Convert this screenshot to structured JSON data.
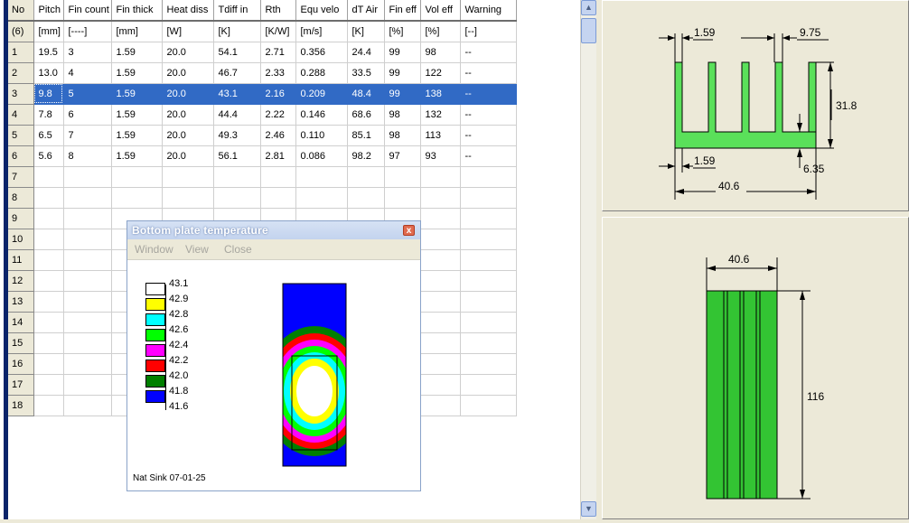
{
  "grid": {
    "headers": [
      "No",
      "Pitch",
      "Fin count",
      "Fin thick",
      "Heat diss",
      "Tdiff in",
      "Rth",
      "Equ velo",
      "dT Air",
      "Fin eff",
      "Vol eff",
      "Warning"
    ],
    "units": [
      "(6)",
      "[mm]",
      "[----]",
      "[mm]",
      "[W]",
      "[K]",
      "[K/W]",
      "[m/s]",
      "[K]",
      "[%]",
      "[%]",
      "[--]"
    ],
    "rows": [
      [
        "1",
        "19.5",
        "3",
        "1.59",
        "20.0",
        "54.1",
        "2.71",
        "0.356",
        "24.4",
        "99",
        "98",
        "--"
      ],
      [
        "2",
        "13.0",
        "4",
        "1.59",
        "20.0",
        "46.7",
        "2.33",
        "0.288",
        "33.5",
        "99",
        "122",
        "--"
      ],
      [
        "3",
        "9.8",
        "5",
        "1.59",
        "20.0",
        "43.1",
        "2.16",
        "0.209",
        "48.4",
        "99",
        "138",
        "--"
      ],
      [
        "4",
        "7.8",
        "6",
        "1.59",
        "20.0",
        "44.4",
        "2.22",
        "0.146",
        "68.6",
        "98",
        "132",
        "--"
      ],
      [
        "5",
        "6.5",
        "7",
        "1.59",
        "20.0",
        "49.3",
        "2.46",
        "0.110",
        "85.1",
        "98",
        "113",
        "--"
      ],
      [
        "6",
        "5.6",
        "8",
        "1.59",
        "20.0",
        "56.1",
        "2.81",
        "0.086",
        "98.2",
        "97",
        "93",
        "--"
      ]
    ],
    "empty_rows": [
      "7",
      "8",
      "9",
      "10",
      "11",
      "12",
      "13",
      "14",
      "15",
      "16",
      "17",
      "18"
    ],
    "selected_row": 2
  },
  "scrollbar": {
    "up_icon": "arrow-up-icon",
    "down_icon": "arrow-down-icon"
  },
  "top_drawing": {
    "fin_thick": "1.59",
    "pitch": "9.75",
    "height": "31.8",
    "base_thick_label": "1.59",
    "base_height": "6.35",
    "width": "40.6",
    "fill_color": "#5ae05a"
  },
  "bottom_drawing": {
    "width": "40.6",
    "length": "116",
    "fill_color": "#33c433"
  },
  "popup": {
    "title": "Bottom plate temperature",
    "menu": [
      "Window",
      "View",
      "Close"
    ],
    "close_glyph": "x",
    "legend": [
      {
        "label": "43.1",
        "color": "#ffffff"
      },
      {
        "label": "42.9",
        "color": "#ffff00"
      },
      {
        "label": "42.8",
        "color": "#00ffff"
      },
      {
        "label": "42.6",
        "color": "#00ff00"
      },
      {
        "label": "42.4",
        "color": "#ff00ff"
      },
      {
        "label": "42.2",
        "color": "#ff0000"
      },
      {
        "label": "42.0",
        "color": "#007f00"
      },
      {
        "label": "41.8",
        "color": "#0000ff"
      },
      {
        "label": "41.6",
        "color": ""
      }
    ],
    "footer": "Nat Sink 07-01-25"
  }
}
